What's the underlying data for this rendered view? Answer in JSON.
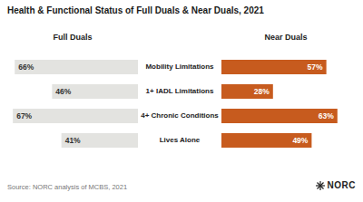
{
  "chart_data": {
    "type": "bar",
    "title": "Health & Functional Status of Full Duals & Near Duals, 2021",
    "orientation": "horizontal",
    "categories": [
      "Mobility Limitations",
      "1+ IADL Limitations",
      "4+ Chronic Conditions",
      "Lives Alone"
    ],
    "series": [
      {
        "name": "Full Duals",
        "color": "#e3e3e0",
        "values": [
          66,
          46,
          67,
          41
        ],
        "value_labels": [
          "66%",
          "46%",
          "67%",
          "41%"
        ]
      },
      {
        "name": "Near Duals",
        "color": "#c75b1e",
        "values": [
          57,
          28,
          63,
          49
        ],
        "value_labels": [
          "57%",
          "28%",
          "63%",
          "49%"
        ]
      }
    ],
    "xlim": [
      0,
      70
    ],
    "data_labels": true,
    "tick_labels": "y",
    "source": "Source: NORC analysis of MCBS, 2021",
    "logo": "NORC"
  }
}
